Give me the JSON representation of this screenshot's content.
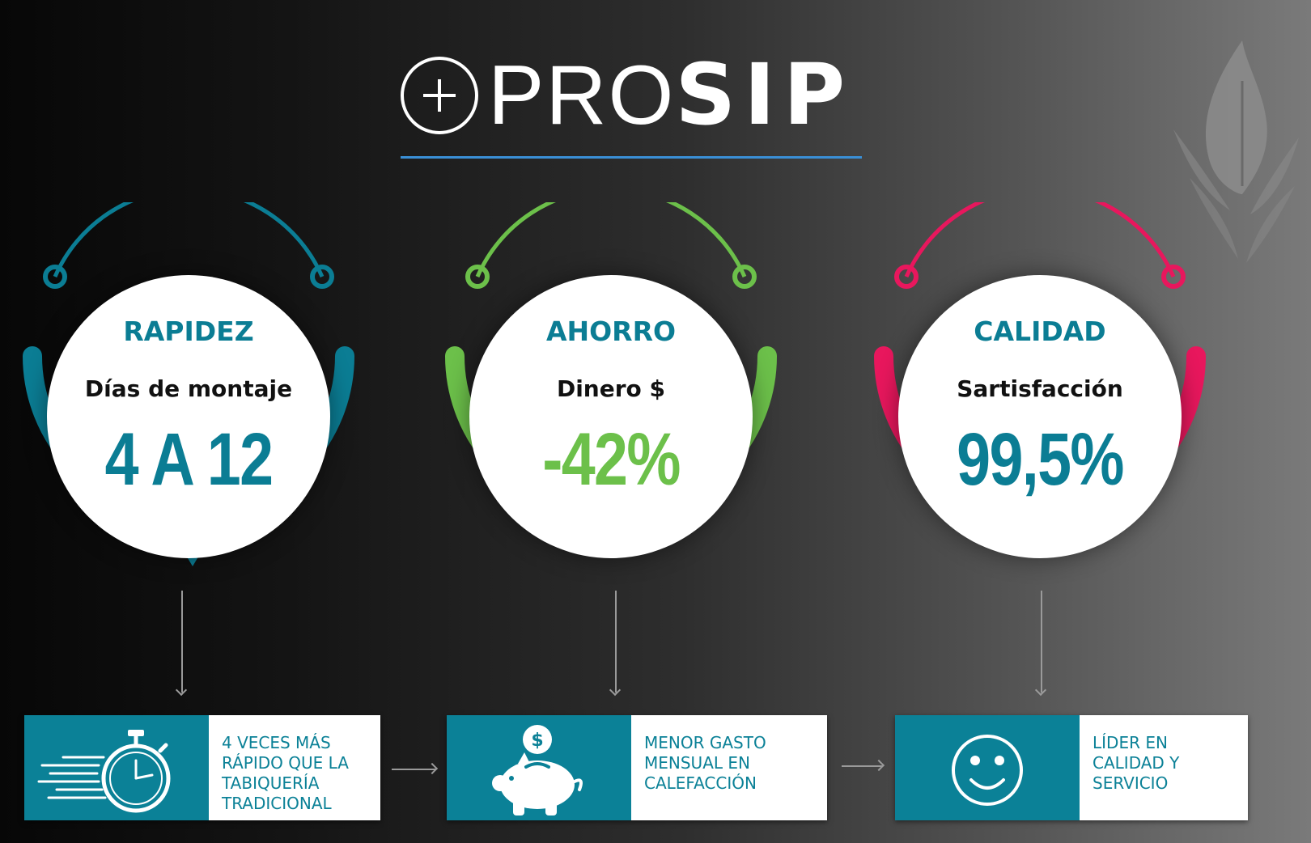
{
  "brand": {
    "circle_symbol": "plus-in-circle",
    "name_light": "PRO",
    "name_bold": "SIP",
    "line_color": "#3a8fd6"
  },
  "colors": {
    "teal": "#0b7d94",
    "green": "#6cc04a",
    "pink": "#e8175d"
  },
  "badges": [
    {
      "title": "RAPIDEZ",
      "subtitle": "Días de montaje",
      "value": "4 A 12",
      "color": "#0b7d94"
    },
    {
      "title": "AHORRO",
      "subtitle": "Dinero $",
      "value": "-42%",
      "color": "#6cc04a"
    },
    {
      "title": "CALIDAD",
      "subtitle": "Sartisfacción",
      "value": "99,5%",
      "color": "#e8175d"
    }
  ],
  "cards": [
    {
      "icon": "stopwatch-icon",
      "text": "4 VECES MÁS RÁPIDO QUE LA TABIQUERÍA TRADICIONAL"
    },
    {
      "icon": "piggy-bank-icon",
      "text": "MENOR GASTO MENSUAL EN CALEFACCIÓN",
      "icon_label": "$"
    },
    {
      "icon": "smiley-icon",
      "text": "LÍDER EN CALIDAD Y SERVICIO"
    }
  ]
}
